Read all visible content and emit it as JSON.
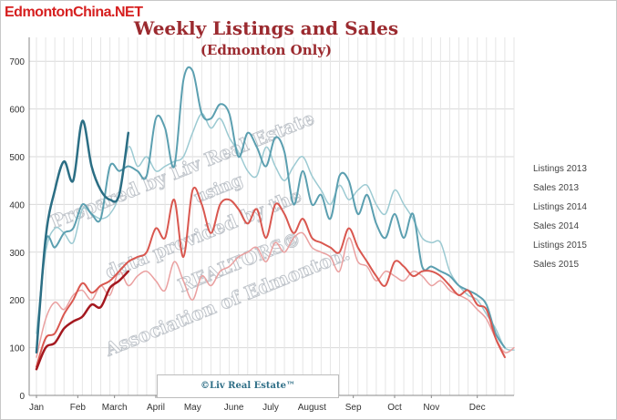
{
  "site_tag": "EdmontonChina.NET",
  "credit": "©Liv Real Estate™",
  "watermark": {
    "line1": "Prepared by Liv Real Estate",
    "line2": "using",
    "line3": "data provided by the",
    "line4": "REALTORS®",
    "line5": "Association of Edmonton."
  },
  "chart_data": {
    "type": "line",
    "title": "Weekly Listings and Sales",
    "subtitle": "(Edmonton Only)",
    "xlabel": "",
    "ylabel": "",
    "ylim": [
      0,
      750
    ],
    "yticks": [
      0,
      100,
      200,
      300,
      400,
      500,
      600,
      700
    ],
    "month_ticks": [
      "Jan",
      "Feb",
      "March",
      "April",
      "May",
      "June",
      "July",
      "August",
      "Sep",
      "Oct",
      "Nov",
      "Dec"
    ],
    "month_tick_weeks": [
      1,
      5.5,
      9.5,
      14,
      18,
      22.5,
      26.5,
      31,
      35.5,
      40,
      44,
      49
    ],
    "x_range_weeks": [
      1,
      53
    ],
    "grid": true,
    "legend_position": "right",
    "series": [
      {
        "name": "Listings 2013",
        "color": "#9ccad2",
        "width": 1.5,
        "x": [
          1,
          2,
          3,
          4,
          5,
          6,
          7,
          8,
          9,
          10,
          11,
          12,
          13,
          14,
          15,
          16,
          17,
          18,
          19,
          20,
          21,
          22,
          23,
          24,
          25,
          26,
          27,
          28,
          29,
          30,
          31,
          32,
          33,
          34,
          35,
          36,
          37,
          38,
          39,
          40,
          41,
          42,
          43,
          44,
          45,
          46,
          47,
          48,
          49,
          50,
          51,
          52,
          53
        ],
        "values": [
          130,
          300,
          350,
          340,
          320,
          390,
          380,
          370,
          380,
          420,
          520,
          480,
          500,
          470,
          480,
          490,
          500,
          550,
          590,
          560,
          580,
          540,
          510,
          470,
          460,
          520,
          480,
          450,
          480,
          500,
          460,
          430,
          400,
          440,
          410,
          430,
          440,
          400,
          380,
          430,
          400,
          370,
          330,
          320,
          320,
          260,
          230,
          210,
          200,
          170,
          140,
          100,
          95
        ]
      },
      {
        "name": "Sales 2013",
        "color": "#eaa0a0",
        "width": 1.5,
        "x": [
          1,
          2,
          3,
          4,
          5,
          6,
          7,
          8,
          9,
          10,
          11,
          12,
          13,
          14,
          15,
          16,
          17,
          18,
          19,
          20,
          21,
          22,
          23,
          24,
          25,
          26,
          27,
          28,
          29,
          30,
          31,
          32,
          33,
          34,
          35,
          36,
          37,
          38,
          39,
          40,
          41,
          42,
          43,
          44,
          45,
          46,
          47,
          48,
          49,
          50,
          51,
          52,
          53
        ],
        "values": [
          80,
          160,
          195,
          180,
          210,
          220,
          200,
          230,
          210,
          260,
          230,
          250,
          260,
          240,
          220,
          280,
          240,
          200,
          250,
          230,
          260,
          270,
          290,
          300,
          310,
          280,
          320,
          300,
          330,
          340,
          310,
          300,
          290,
          260,
          330,
          280,
          270,
          240,
          260,
          250,
          240,
          260,
          250,
          230,
          240,
          220,
          210,
          200,
          180,
          160,
          120,
          90,
          100
        ]
      },
      {
        "name": "Listings 2014",
        "color": "#5b9fb0",
        "width": 2,
        "x": [
          1,
          2,
          3,
          4,
          5,
          6,
          7,
          8,
          9,
          10,
          11,
          12,
          13,
          14,
          15,
          16,
          17,
          18,
          19,
          20,
          21,
          22,
          23,
          24,
          25,
          26,
          27,
          28,
          29,
          30,
          31,
          32,
          33,
          34,
          35,
          36,
          37,
          38,
          39,
          40,
          41,
          42,
          43,
          44,
          45,
          46,
          47,
          48,
          49,
          50,
          51,
          52
        ],
        "values": [
          90,
          320,
          310,
          340,
          350,
          400,
          380,
          370,
          480,
          470,
          480,
          470,
          460,
          580,
          560,
          480,
          660,
          680,
          590,
          580,
          610,
          590,
          500,
          550,
          520,
          480,
          540,
          510,
          400,
          470,
          400,
          420,
          370,
          460,
          450,
          380,
          420,
          360,
          330,
          380,
          330,
          380,
          270,
          270,
          260,
          250,
          230,
          220,
          210,
          190,
          130,
          100
        ]
      },
      {
        "name": "Sales 2014",
        "color": "#d9574f",
        "width": 2,
        "x": [
          1,
          2,
          3,
          4,
          5,
          6,
          7,
          8,
          9,
          10,
          11,
          12,
          13,
          14,
          15,
          16,
          17,
          18,
          19,
          20,
          21,
          22,
          23,
          24,
          25,
          26,
          27,
          28,
          29,
          30,
          31,
          32,
          33,
          34,
          35,
          36,
          37,
          38,
          39,
          40,
          41,
          42,
          43,
          44,
          45,
          46,
          47,
          48,
          49,
          50,
          51,
          52
        ],
        "values": [
          60,
          120,
          130,
          170,
          200,
          235,
          215,
          230,
          240,
          260,
          280,
          290,
          300,
          350,
          330,
          410,
          290,
          430,
          400,
          340,
          400,
          410,
          390,
          360,
          390,
          330,
          400,
          380,
          340,
          370,
          330,
          320,
          310,
          300,
          350,
          310,
          280,
          250,
          230,
          280,
          270,
          250,
          260,
          260,
          250,
          230,
          210,
          220,
          190,
          180,
          120,
          80
        ]
      },
      {
        "name": "Listings 2015",
        "color": "#2b6e84",
        "width": 2.5,
        "x": [
          1,
          2,
          3,
          4,
          5,
          6,
          7,
          8,
          9,
          10,
          11
        ],
        "values": [
          90,
          330,
          430,
          490,
          450,
          575,
          480,
          430,
          410,
          420,
          550
        ]
      },
      {
        "name": "Sales 2015",
        "color": "#a4181f",
        "width": 2.5,
        "x": [
          1,
          2,
          3,
          4,
          5,
          6,
          7,
          8,
          9,
          10,
          11
        ],
        "values": [
          55,
          100,
          110,
          140,
          155,
          165,
          190,
          185,
          225,
          240,
          260
        ]
      }
    ]
  }
}
